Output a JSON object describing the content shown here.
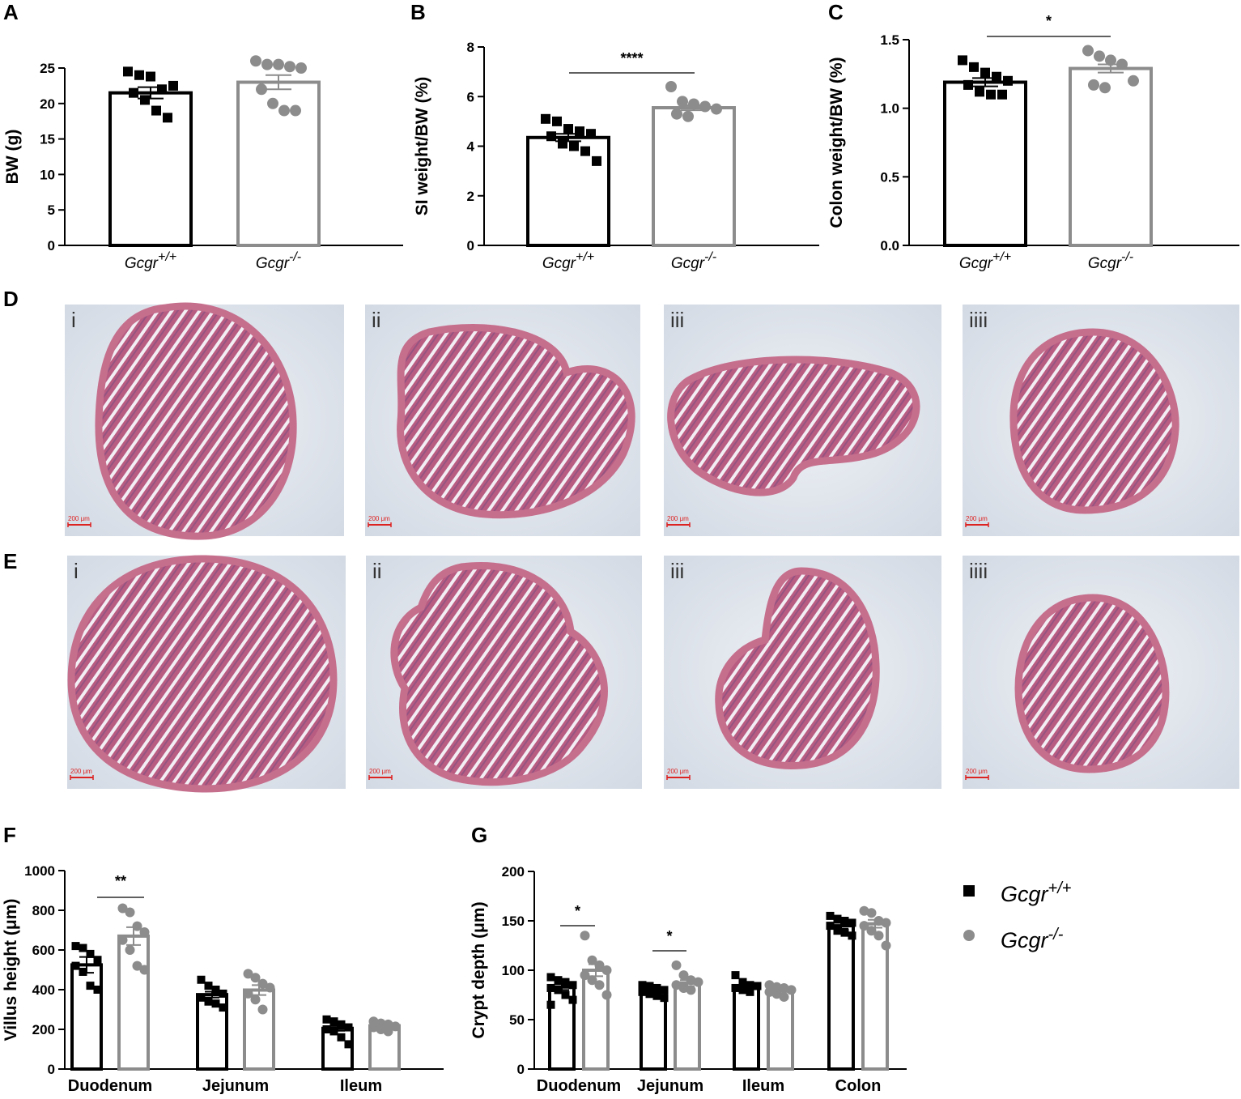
{
  "colors": {
    "wt": "#000000",
    "ko": "#8c8c8c",
    "tissue": "#c66f8d",
    "slide": "#dde3ec"
  },
  "panel_letters": {
    "A": "A",
    "B": "B",
    "C": "C",
    "D": "D",
    "E": "E",
    "F": "F",
    "G": "G"
  },
  "groups": {
    "wt": "Gcgr",
    "wt_sup": "+/+",
    "ko": "Gcgr",
    "ko_sup": "-/-"
  },
  "micro": {
    "labels": [
      "i",
      "ii",
      "iii",
      "iiii"
    ],
    "scale": "200 μm"
  },
  "legend": [
    {
      "name": "Gcgr",
      "sup": "+/+",
      "marker": "square"
    },
    {
      "name": "Gcgr",
      "sup": "-/-",
      "marker": "circle"
    }
  ],
  "chart_data": [
    {
      "id": "A",
      "type": "bar",
      "ylabel": "BW (g)",
      "ylim": [
        0,
        25
      ],
      "yticks": [
        0,
        5,
        10,
        15,
        20,
        25
      ],
      "series": [
        {
          "name": "Gcgr+/+",
          "values": [
            21.5
          ],
          "sem": 0.8,
          "points": [
            24.5,
            24,
            23.8,
            22,
            22.5,
            21.5,
            20.5,
            19,
            18
          ]
        },
        {
          "name": "Gcgr-/-",
          "values": [
            23.0
          ],
          "sem": 1.0,
          "points": [
            26,
            25.5,
            25.5,
            25.2,
            25,
            22,
            20,
            19,
            19
          ]
        }
      ],
      "annotations": []
    },
    {
      "id": "B",
      "type": "bar",
      "ylabel": "SI weight/BW (%)",
      "ylim": [
        0,
        8
      ],
      "yticks": [
        0,
        2,
        4,
        6,
        8
      ],
      "series": [
        {
          "name": "Gcgr+/+",
          "values": [
            4.35
          ],
          "sem": 0.15,
          "points": [
            5.1,
            5.0,
            4.7,
            4.6,
            4.5,
            4.4,
            4.1,
            4.0,
            3.8,
            3.4
          ]
        },
        {
          "name": "Gcgr-/-",
          "values": [
            5.55
          ],
          "sem": 0.1,
          "points": [
            6.4,
            5.8,
            5.7,
            5.6,
            5.5,
            5.3,
            5.2
          ]
        }
      ],
      "annotations": [
        {
          "text": "****"
        }
      ]
    },
    {
      "id": "C",
      "type": "bar",
      "ylabel": "Colon weight/BW (%)",
      "ylim": [
        0,
        1.5
      ],
      "yticks": [
        "0.0",
        "0.5",
        "1.0",
        "1.5"
      ],
      "series": [
        {
          "name": "Gcgr+/+",
          "values": [
            1.19
          ],
          "sem": 0.03,
          "points": [
            1.35,
            1.3,
            1.26,
            1.23,
            1.2,
            1.17,
            1.12,
            1.1,
            1.1
          ]
        },
        {
          "name": "Gcgr-/-",
          "values": [
            1.29
          ],
          "sem": 0.03,
          "points": [
            1.42,
            1.38,
            1.35,
            1.32,
            1.2,
            1.17,
            1.15
          ]
        }
      ],
      "annotations": [
        {
          "text": "*"
        }
      ]
    },
    {
      "id": "F",
      "type": "bar",
      "ylabel": "Villus height (μm)",
      "ylim": [
        0,
        1000
      ],
      "yticks": [
        0,
        200,
        400,
        600,
        800,
        1000
      ],
      "categories": [
        "Duodenum",
        "Jejunum",
        "Ileum"
      ],
      "series": [
        {
          "name": "Gcgr+/+",
          "values": [
            525,
            375,
            205
          ],
          "sem": [
            40,
            15,
            12
          ],
          "points": [
            [
              620,
              610,
              580,
              550,
              520,
              490,
              420,
              400
            ],
            [
              450,
              420,
              400,
              380,
              360,
              340,
              330,
              310
            ],
            [
              250,
              240,
              225,
              210,
              200,
              190,
              160,
              125
            ]
          ]
        },
        {
          "name": "Gcgr-/-",
          "values": [
            670,
            398,
            218
          ],
          "sem": [
            45,
            25,
            10
          ],
          "points": [
            [
              810,
              790,
              720,
              690,
              650,
              600,
              520,
              500
            ],
            [
              480,
              460,
              430,
              410,
              380,
              350,
              300
            ],
            [
              240,
              230,
              225,
              215,
              210,
              200,
              190
            ]
          ]
        }
      ],
      "annotations": [
        {
          "text": "**"
        }
      ]
    },
    {
      "id": "G",
      "type": "bar",
      "ylabel": "Crypt depth (μm)",
      "ylim": [
        0,
        200
      ],
      "yticks": [
        0,
        50,
        100,
        150,
        200
      ],
      "categories": [
        "Duodenum",
        "Jejunum",
        "Ileum",
        "Colon"
      ],
      "series": [
        {
          "name": "Gcgr+/+",
          "values": [
            83,
            80,
            84,
            145
          ],
          "sem": [
            3,
            2,
            2,
            3
          ],
          "points": [
            [
              93,
              90,
              88,
              85,
              82,
              80,
              75,
              70,
              65
            ],
            [
              85,
              84,
              82,
              80,
              78,
              76,
              74,
              72
            ],
            [
              95,
              88,
              85,
              84,
              82,
              80,
              78
            ],
            [
              155,
              152,
              150,
              148,
              145,
              140,
              138,
              135
            ]
          ]
        },
        {
          "name": "Gcgr-/-",
          "values": [
            100,
            87,
            80,
            147
          ],
          "sem": [
            6,
            3,
            2,
            4
          ],
          "points": [
            [
              135,
              110,
              105,
              100,
              95,
              90,
              85,
              75
            ],
            [
              105,
              95,
              90,
              88,
              85,
              82,
              80
            ],
            [
              85,
              83,
              82,
              80,
              78,
              76,
              73
            ],
            [
              160,
              158,
              150,
              148,
              145,
              140,
              135,
              125
            ]
          ]
        }
      ],
      "annotations": [
        {
          "text": "*"
        },
        {
          "text": "*"
        }
      ]
    }
  ]
}
